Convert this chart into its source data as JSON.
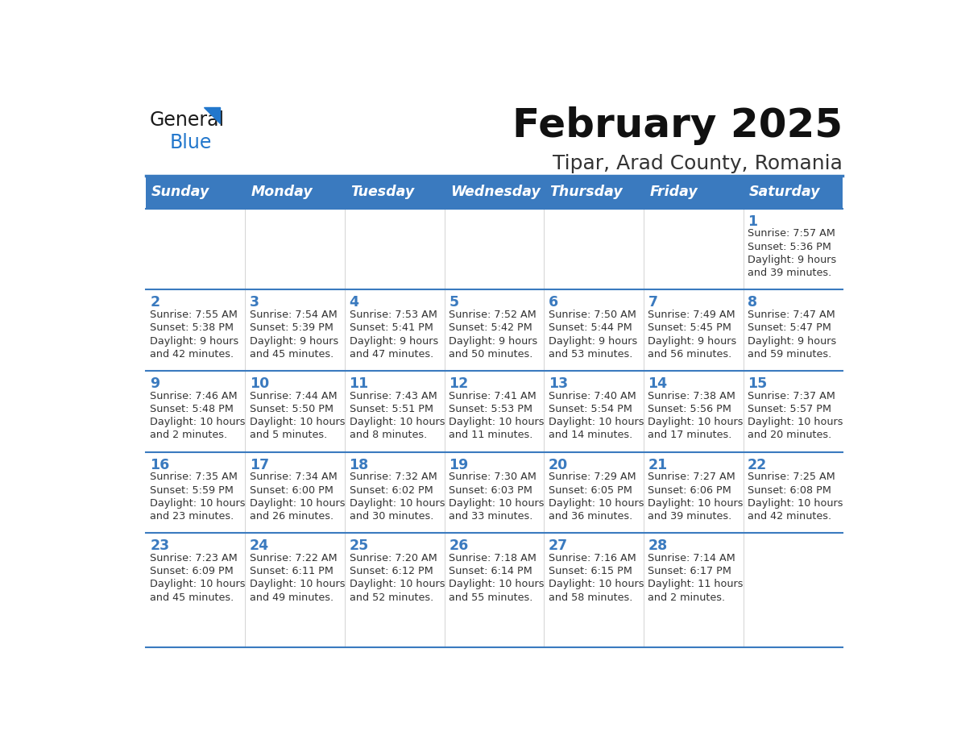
{
  "title": "February 2025",
  "subtitle": "Tipar, Arad County, Romania",
  "header_bg_color": "#3a7abf",
  "header_text_color": "#ffffff",
  "day_number_color": "#3a7abf",
  "text_color": "#333333",
  "border_color": "#3a7abf",
  "days_of_week": [
    "Sunday",
    "Monday",
    "Tuesday",
    "Wednesday",
    "Thursday",
    "Friday",
    "Saturday"
  ],
  "calendar_data": [
    [
      null,
      null,
      null,
      null,
      null,
      null,
      {
        "day": 1,
        "sunrise": "7:57 AM",
        "sunset": "5:36 PM",
        "daylight_line1": "9 hours",
        "daylight_line2": "and 39 minutes."
      }
    ],
    [
      {
        "day": 2,
        "sunrise": "7:55 AM",
        "sunset": "5:38 PM",
        "daylight_line1": "9 hours",
        "daylight_line2": "and 42 minutes."
      },
      {
        "day": 3,
        "sunrise": "7:54 AM",
        "sunset": "5:39 PM",
        "daylight_line1": "9 hours",
        "daylight_line2": "and 45 minutes."
      },
      {
        "day": 4,
        "sunrise": "7:53 AM",
        "sunset": "5:41 PM",
        "daylight_line1": "9 hours",
        "daylight_line2": "and 47 minutes."
      },
      {
        "day": 5,
        "sunrise": "7:52 AM",
        "sunset": "5:42 PM",
        "daylight_line1": "9 hours",
        "daylight_line2": "and 50 minutes."
      },
      {
        "day": 6,
        "sunrise": "7:50 AM",
        "sunset": "5:44 PM",
        "daylight_line1": "9 hours",
        "daylight_line2": "and 53 minutes."
      },
      {
        "day": 7,
        "sunrise": "7:49 AM",
        "sunset": "5:45 PM",
        "daylight_line1": "9 hours",
        "daylight_line2": "and 56 minutes."
      },
      {
        "day": 8,
        "sunrise": "7:47 AM",
        "sunset": "5:47 PM",
        "daylight_line1": "9 hours",
        "daylight_line2": "and 59 minutes."
      }
    ],
    [
      {
        "day": 9,
        "sunrise": "7:46 AM",
        "sunset": "5:48 PM",
        "daylight_line1": "10 hours",
        "daylight_line2": "and 2 minutes."
      },
      {
        "day": 10,
        "sunrise": "7:44 AM",
        "sunset": "5:50 PM",
        "daylight_line1": "10 hours",
        "daylight_line2": "and 5 minutes."
      },
      {
        "day": 11,
        "sunrise": "7:43 AM",
        "sunset": "5:51 PM",
        "daylight_line1": "10 hours",
        "daylight_line2": "and 8 minutes."
      },
      {
        "day": 12,
        "sunrise": "7:41 AM",
        "sunset": "5:53 PM",
        "daylight_line1": "10 hours",
        "daylight_line2": "and 11 minutes."
      },
      {
        "day": 13,
        "sunrise": "7:40 AM",
        "sunset": "5:54 PM",
        "daylight_line1": "10 hours",
        "daylight_line2": "and 14 minutes."
      },
      {
        "day": 14,
        "sunrise": "7:38 AM",
        "sunset": "5:56 PM",
        "daylight_line1": "10 hours",
        "daylight_line2": "and 17 minutes."
      },
      {
        "day": 15,
        "sunrise": "7:37 AM",
        "sunset": "5:57 PM",
        "daylight_line1": "10 hours",
        "daylight_line2": "and 20 minutes."
      }
    ],
    [
      {
        "day": 16,
        "sunrise": "7:35 AM",
        "sunset": "5:59 PM",
        "daylight_line1": "10 hours",
        "daylight_line2": "and 23 minutes."
      },
      {
        "day": 17,
        "sunrise": "7:34 AM",
        "sunset": "6:00 PM",
        "daylight_line1": "10 hours",
        "daylight_line2": "and 26 minutes."
      },
      {
        "day": 18,
        "sunrise": "7:32 AM",
        "sunset": "6:02 PM",
        "daylight_line1": "10 hours",
        "daylight_line2": "and 30 minutes."
      },
      {
        "day": 19,
        "sunrise": "7:30 AM",
        "sunset": "6:03 PM",
        "daylight_line1": "10 hours",
        "daylight_line2": "and 33 minutes."
      },
      {
        "day": 20,
        "sunrise": "7:29 AM",
        "sunset": "6:05 PM",
        "daylight_line1": "10 hours",
        "daylight_line2": "and 36 minutes."
      },
      {
        "day": 21,
        "sunrise": "7:27 AM",
        "sunset": "6:06 PM",
        "daylight_line1": "10 hours",
        "daylight_line2": "and 39 minutes."
      },
      {
        "day": 22,
        "sunrise": "7:25 AM",
        "sunset": "6:08 PM",
        "daylight_line1": "10 hours",
        "daylight_line2": "and 42 minutes."
      }
    ],
    [
      {
        "day": 23,
        "sunrise": "7:23 AM",
        "sunset": "6:09 PM",
        "daylight_line1": "10 hours",
        "daylight_line2": "and 45 minutes."
      },
      {
        "day": 24,
        "sunrise": "7:22 AM",
        "sunset": "6:11 PM",
        "daylight_line1": "10 hours",
        "daylight_line2": "and 49 minutes."
      },
      {
        "day": 25,
        "sunrise": "7:20 AM",
        "sunset": "6:12 PM",
        "daylight_line1": "10 hours",
        "daylight_line2": "and 52 minutes."
      },
      {
        "day": 26,
        "sunrise": "7:18 AM",
        "sunset": "6:14 PM",
        "daylight_line1": "10 hours",
        "daylight_line2": "and 55 minutes."
      },
      {
        "day": 27,
        "sunrise": "7:16 AM",
        "sunset": "6:15 PM",
        "daylight_line1": "10 hours",
        "daylight_line2": "and 58 minutes."
      },
      {
        "day": 28,
        "sunrise": "7:14 AM",
        "sunset": "6:17 PM",
        "daylight_line1": "11 hours",
        "daylight_line2": "and 2 minutes."
      },
      null
    ]
  ]
}
